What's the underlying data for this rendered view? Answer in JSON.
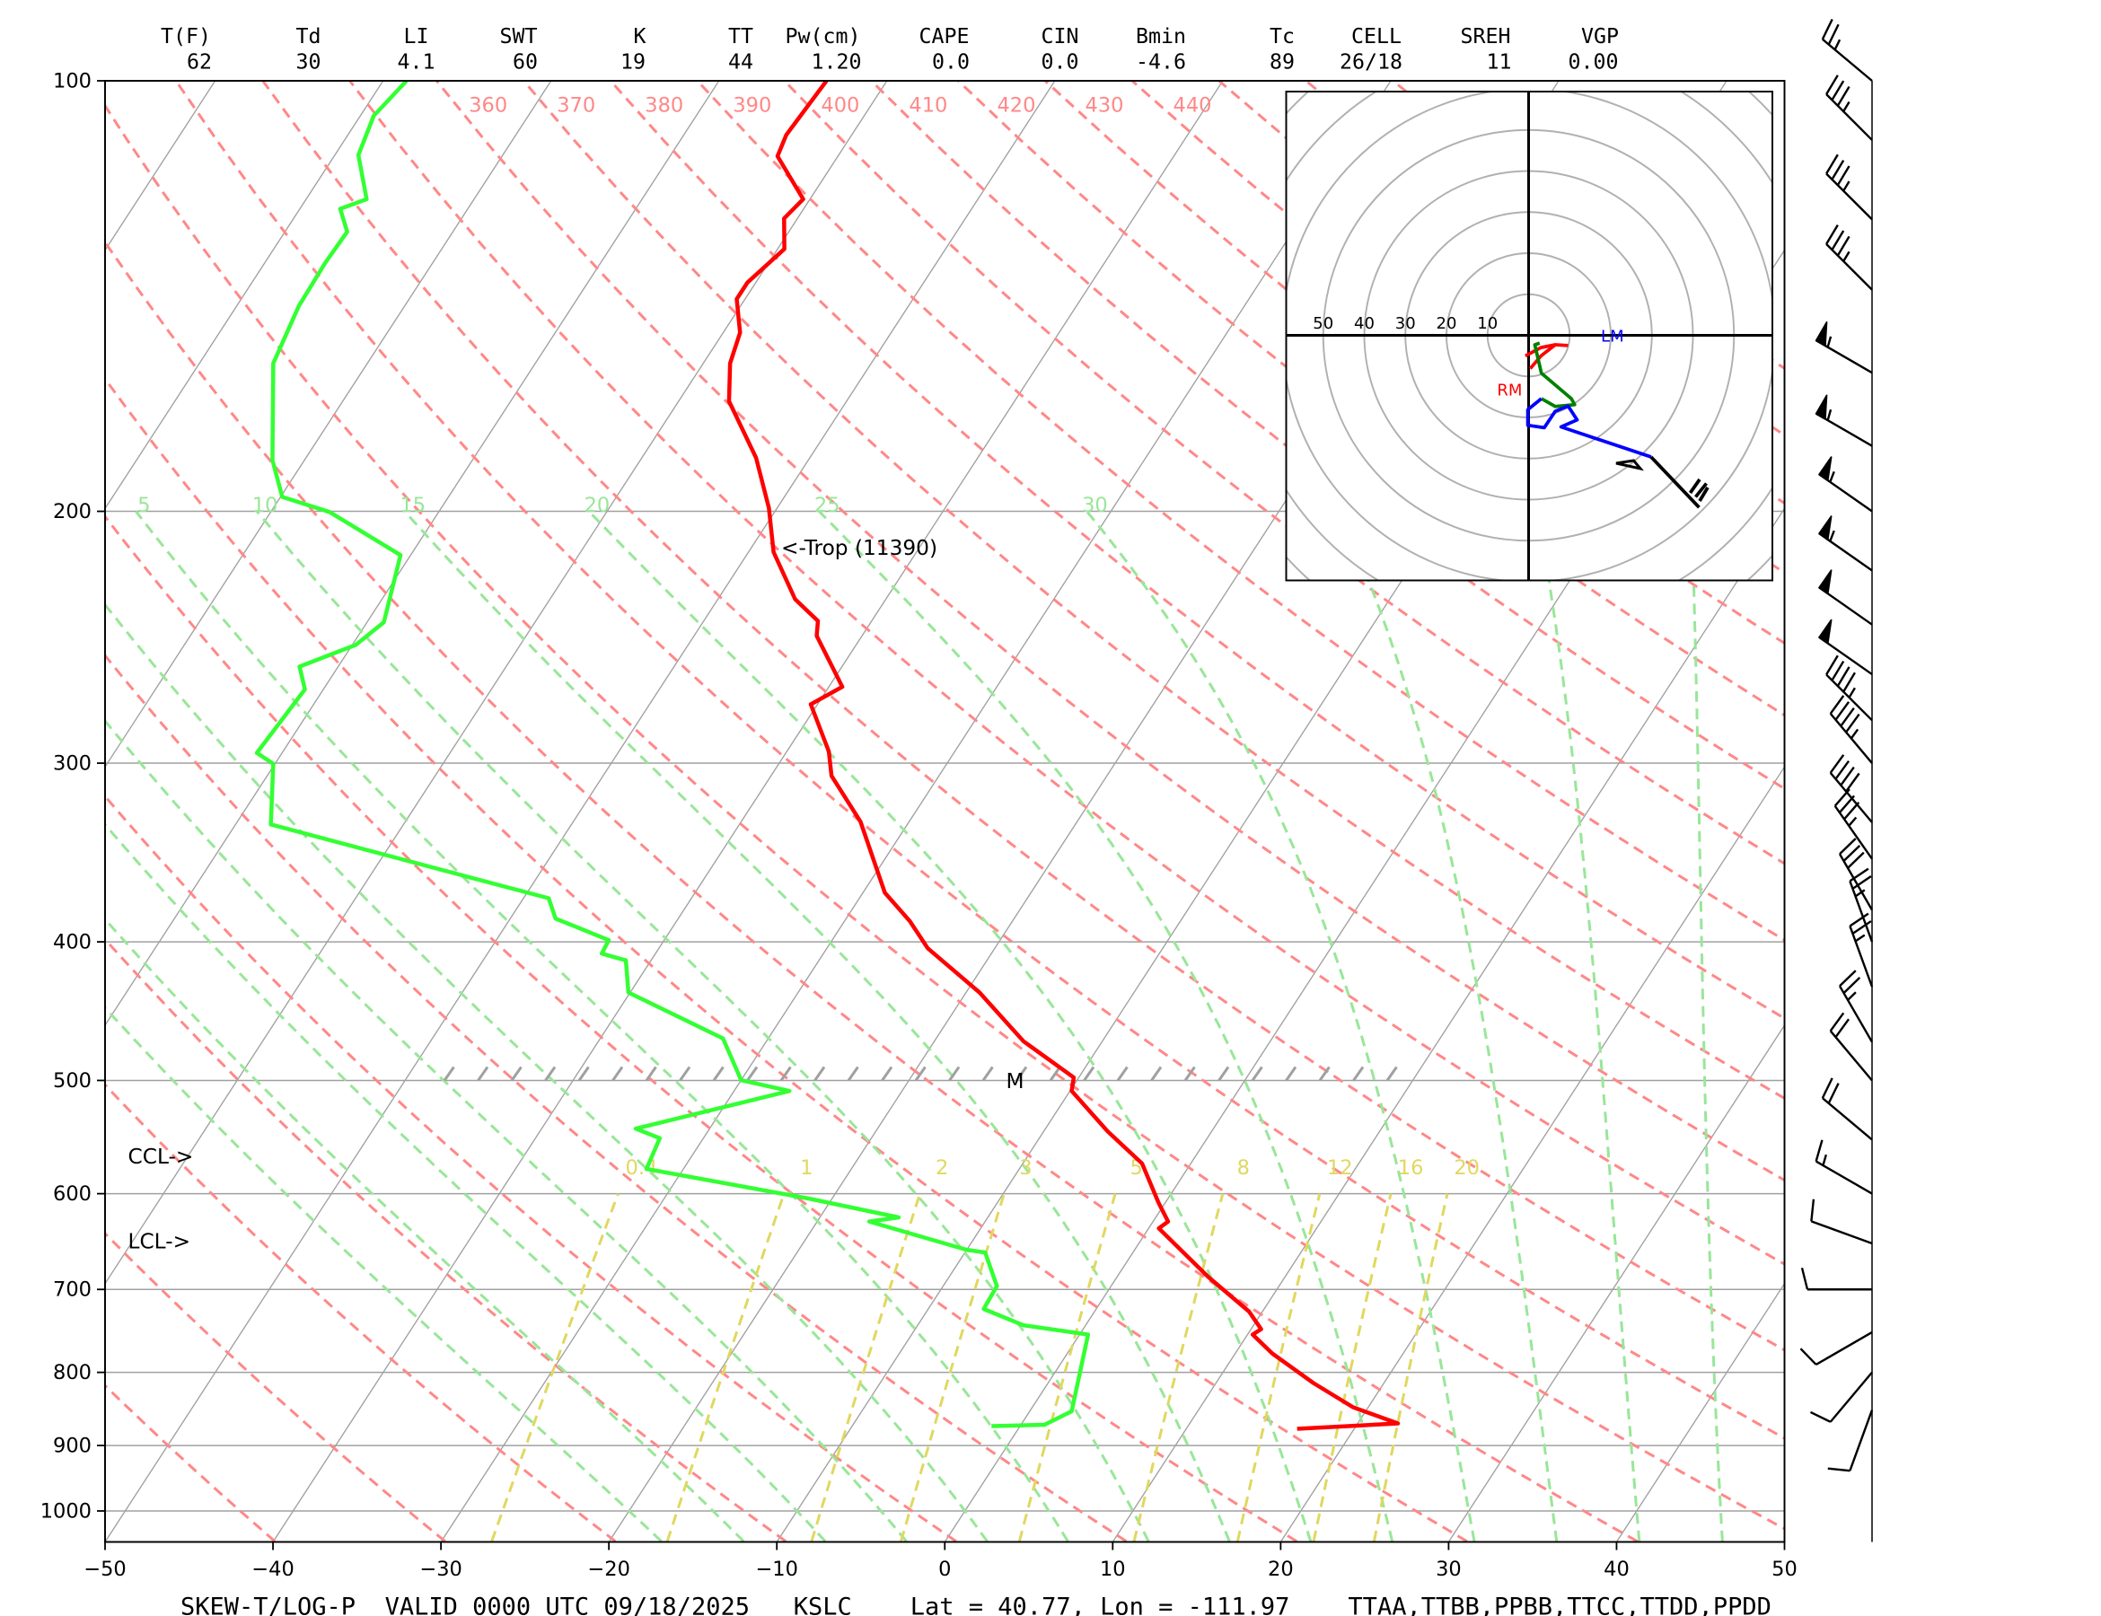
{
  "header": {
    "labels": [
      "T(F)",
      "Td",
      "LI",
      "SWT",
      "K",
      "TT",
      "Pw(cm)",
      "CAPE",
      "CIN",
      "Bmin",
      "Tc",
      "CELL",
      "SREH",
      "VGP"
    ],
    "values": [
      "62",
      "30",
      "4.1",
      "60",
      "19",
      "44",
      "1.20",
      "0.0",
      "0.0",
      "-4.6",
      "89",
      "26/18",
      "11",
      "0.00"
    ]
  },
  "footer": {
    "text": "SKEW-T/LOG-P  VALID 0000 UTC 09/18/2025   KSLC    Lat = 40.77, Lon = -111.97    TTAA,TTBB,PPBB,TTCC,TTDD,PPDD"
  },
  "annotations": {
    "trop": "<-Trop (11390)",
    "ccl": "CCL->",
    "lcl": "LCL->",
    "m": "M"
  },
  "chart_data": [
    {
      "type": "line",
      "subtype": "skew-t log-p",
      "title": "",
      "xlabel": "",
      "ylabel": "",
      "xlim": [
        -50,
        50
      ],
      "ylim": [
        1050,
        100
      ],
      "y_scale": "log",
      "x_ticks": [
        "−50",
        "−40",
        "−30",
        "−20",
        "−10",
        "0",
        "10",
        "20",
        "30",
        "40",
        "50"
      ],
      "x_tick_values": [
        -50,
        -40,
        -30,
        -20,
        -10,
        0,
        10,
        20,
        30,
        40,
        50
      ],
      "y_ticks": [
        "100",
        "200",
        "300",
        "400",
        "500",
        "600",
        "700",
        "800",
        "900",
        "1000"
      ],
      "y_tick_values": [
        100,
        200,
        300,
        400,
        500,
        600,
        700,
        800,
        900,
        1000
      ],
      "grid": true,
      "colors": {
        "temperature": "#ff0000",
        "dewpoint": "#33ff33",
        "isotherm": "#a0a0a0",
        "dry_adiabat": "#ff8888",
        "moist_adiabat": "#99e699",
        "mixing_ratio": "#e0d860"
      },
      "dry_adiabat_labels": [
        "360",
        "370",
        "380",
        "390",
        "400",
        "410",
        "420",
        "430",
        "440"
      ],
      "dry_adiabat_label_values": [
        360,
        370,
        380,
        390,
        400,
        410,
        420,
        430,
        440
      ],
      "moist_adiabat_labels": [
        "5",
        "10",
        "15",
        "20",
        "25",
        "30"
      ],
      "moist_adiabat_label_values": [
        5,
        10,
        15,
        20,
        25,
        30
      ],
      "mixing_ratio_labels": [
        "0.4",
        "1",
        "2",
        "3",
        "5",
        "8",
        "12",
        "16",
        "20"
      ],
      "mixing_ratio_label_values": [
        0.4,
        1,
        2,
        3,
        5,
        8,
        12,
        16,
        20
      ],
      "series": [
        {
          "key": "temperature",
          "pressure": [
            100,
            109.1,
            112.9,
            121.0,
            124.8,
            131.1,
            138.4,
            142.1,
            150.0,
            157.6,
            167.5,
            183.5,
            198.9,
            213.6,
            230.4,
            238.6,
            244.4,
            265.3,
            272.9,
            294.4,
            306.2,
            329.6,
            369.6,
            387.0,
            404.1,
            434.0,
            469.4,
            497.6,
            508.5,
            542.7,
            571.6,
            608.8,
            627.6,
            634.4,
            685.8,
            725.4,
            746.3,
            752.7,
            776.0,
            813.8,
            846.2,
            868.6,
            876.2
          ],
          "temperature": [
            -63.6,
            -63.9,
            -63.6,
            -60.4,
            -60.8,
            -59.6,
            -60.5,
            -60.5,
            -59.0,
            -58.4,
            -57.0,
            -53.2,
            -50.5,
            -48.5,
            -45.4,
            -43.2,
            -42.7,
            -39.2,
            -40.4,
            -37.5,
            -36.4,
            -32.9,
            -28.7,
            -26.1,
            -24.0,
            -19.2,
            -14.7,
            -10.3,
            -9.9,
            -6.2,
            -2.9,
            -0.4,
            0.9,
            0.6,
            5.4,
            9.2,
            10.6,
            10.3,
            12.2,
            15.8,
            19.1,
            22.4,
            16.6
          ]
        },
        {
          "key": "dewpoint",
          "pressure": [
            100,
            105.8,
            112.7,
            121.0,
            122.9,
            127.5,
            134.0,
            143.7,
            157.6,
            184.2,
            195.4,
            200.2,
            214.6,
            239.1,
            248.0,
            256.8,
            266.4,
            295.1,
            300.3,
            331.1,
            360.8,
            372.9,
            385.3,
            398.9,
            407.6,
            412.1,
            434.0,
            467.3,
            499.8,
            508.5,
            540.4,
            548.7,
            576.5,
            604.7,
            623.4,
            627.6,
            656.8,
            659.6,
            696.2,
            722.3,
            741.6,
            752.7,
            851.7,
            870.4,
            872.4
          ],
          "temperature": [
            -88.6,
            -89.2,
            -88.6,
            -86.4,
            -87.6,
            -86.3,
            -86.4,
            -86.3,
            -85.6,
            -81.9,
            -79.9,
            -76.5,
            -70.6,
            -69.0,
            -69.8,
            -72.3,
            -71.1,
            -71.5,
            -70.1,
            -67.9,
            -53.9,
            -48.5,
            -47.3,
            -43.3,
            -43.2,
            -41.5,
            -40.1,
            -32.7,
            -30.0,
            -26.7,
            -34.4,
            -32.6,
            -32.2,
            -21.4,
            -15.3,
            -16.9,
            -10.0,
            -8.8,
            -6.8,
            -6.7,
            -3.7,
            0.5,
            2.5,
            1.4,
            -1.7
          ]
        }
      ],
      "winds": {
        "pressure": [
          100,
          110,
          125,
          140,
          160,
          180,
          200,
          220,
          240,
          260,
          280,
          300,
          330,
          350,
          380,
          400,
          430,
          470,
          500,
          550,
          600,
          650,
          700,
          750,
          800,
          850
        ],
        "direction": [
          310,
          315,
          315,
          315,
          300,
          300,
          305,
          305,
          305,
          305,
          315,
          320,
          320,
          325,
          330,
          340,
          340,
          330,
          320,
          310,
          300,
          290,
          270,
          240,
          220,
          200
        ],
        "speed_kt": [
          25,
          35,
          35,
          35,
          55,
          55,
          55,
          55,
          50,
          50,
          45,
          45,
          40,
          35,
          30,
          25,
          25,
          25,
          20,
          20,
          15,
          10,
          10,
          10,
          10,
          10
        ]
      }
    },
    {
      "type": "line",
      "subtype": "hodograph",
      "ring_labels": [
        "50",
        "40",
        "30",
        "20",
        "10"
      ],
      "ring_values": [
        50,
        40,
        30,
        20,
        10
      ],
      "rings_kt": [
        10,
        20,
        30,
        40,
        50,
        60,
        70,
        80
      ],
      "labels": {
        "rm": "RM",
        "lm": "LM"
      },
      "label_positions_kt": {
        "rm": [
          -4.6,
          -14.6
        ],
        "lm": [
          20.4,
          -1.5
        ]
      },
      "series": [
        {
          "color": "#ff0000",
          "u": [
            0.4,
            3,
            6.5,
            9.6
          ],
          "v": [
            -8.1,
            -5,
            -2.3,
            -2.5
          ]
        },
        {
          "color": "#ff0000",
          "u": [
            -0.8,
            3,
            6.5
          ],
          "v": [
            -5,
            -3,
            -2.3
          ]
        },
        {
          "color": "#008000",
          "u": [
            2.7,
            1.5,
            3.1,
            10.4,
            11.2,
            6.5,
            3.1
          ],
          "v": [
            -1.9,
            -2.3,
            -9.2,
            -15.4,
            -16.9,
            -17.3,
            -15.4
          ]
        },
        {
          "color": "#0000ff",
          "u": [
            3.1,
            -0.2,
            -0.2,
            3.8,
            6.5,
            9.6,
            11.8,
            7.9,
            29.8
          ],
          "v": [
            -15.4,
            -18.1,
            -21.9,
            -22.5,
            -18.5,
            -17.2,
            -20.6,
            -22.3,
            -29.6
          ]
        },
        {
          "color": "#000000",
          "u": [
            29.8,
            41.5
          ],
          "v": [
            -29.6,
            -41.9
          ]
        }
      ]
    }
  ]
}
